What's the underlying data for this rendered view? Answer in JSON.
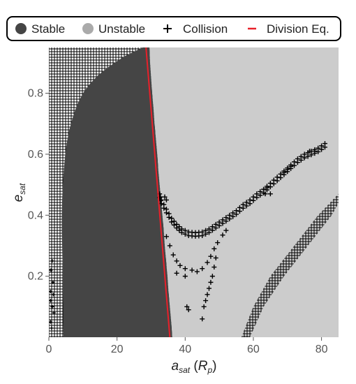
{
  "chart_data": {
    "type": "heatmap",
    "title": "",
    "xlabel": {
      "main": "a",
      "sub": "sat",
      "unit_open": "(",
      "unit_main": "R",
      "unit_sub": "p",
      "unit_close": ")"
    },
    "ylabel": {
      "main": "e",
      "sub": "sat"
    },
    "xlim": [
      0,
      85
    ],
    "ylim": [
      0,
      0.95
    ],
    "x_ticks": [
      0,
      20,
      40,
      60,
      80
    ],
    "y_ticks": [
      0.2,
      0.4,
      0.6,
      0.8
    ],
    "x_tick_labels": [
      "0",
      "20",
      "40",
      "60",
      "80"
    ],
    "y_tick_labels": [
      "0.2",
      "0.4",
      "0.6",
      "0.8"
    ],
    "grid": false,
    "legend": {
      "placement": "top",
      "items": [
        {
          "label": "Stable",
          "symbol": "filled-circle",
          "color": "#444444"
        },
        {
          "label": "Unstable",
          "symbol": "filled-circle",
          "color": "#aaaaaa"
        },
        {
          "label": "Collision",
          "symbol": "plus",
          "color": "#000000"
        },
        {
          "label": "Division Eq.",
          "symbol": "line",
          "color": "#e8202a"
        }
      ]
    },
    "colors": {
      "stable": "#454545",
      "unstable": "#cccccc",
      "collision": "#000000",
      "division": "#e8202a"
    },
    "regions": {
      "stable_boundary": [
        [
          0.95,
          29.5
        ],
        [
          0.9,
          29.7
        ],
        [
          0.85,
          30.0
        ],
        [
          0.8,
          30.3
        ],
        [
          0.75,
          30.7
        ],
        [
          0.7,
          31.0
        ],
        [
          0.65,
          31.4
        ],
        [
          0.6,
          31.8
        ],
        [
          0.55,
          32.1
        ],
        [
          0.5,
          32.5
        ],
        [
          0.45,
          32.9
        ],
        [
          0.4,
          33.3
        ],
        [
          0.35,
          33.7
        ],
        [
          0.3,
          34.0
        ],
        [
          0.25,
          34.4
        ],
        [
          0.2,
          34.8
        ],
        [
          0.15,
          35.1
        ],
        [
          0.1,
          35.5
        ],
        [
          0.05,
          35.9
        ],
        [
          0.0,
          36.2
        ]
      ],
      "left_collision_boundary": [
        [
          0.95,
          27.5
        ],
        [
          0.92,
          22.0
        ],
        [
          0.89,
          18.0
        ],
        [
          0.86,
          14.5
        ],
        [
          0.83,
          12.0
        ],
        [
          0.8,
          10.0
        ],
        [
          0.76,
          8.2
        ],
        [
          0.72,
          7.0
        ],
        [
          0.68,
          6.0
        ],
        [
          0.64,
          5.3
        ],
        [
          0.6,
          4.8
        ],
        [
          0.55,
          4.4
        ],
        [
          0.5,
          4.1
        ],
        [
          0.45,
          3.9
        ],
        [
          0.4,
          3.8
        ],
        [
          0.35,
          3.8
        ],
        [
          0.3,
          3.9
        ],
        [
          0.25,
          4.0
        ],
        [
          0.2,
          4.1
        ],
        [
          0.15,
          4.1
        ],
        [
          0.1,
          4.2
        ],
        [
          0.05,
          4.2
        ],
        [
          0.0,
          4.3
        ]
      ]
    },
    "division_line": [
      [
        28.5,
        0.95
      ],
      [
        35.5,
        0.0
      ]
    ],
    "collision_band_right": {
      "inner_edge": [
        [
          56.5,
          0.0
        ],
        [
          60.0,
          0.1
        ],
        [
          65.0,
          0.2
        ],
        [
          72.0,
          0.3
        ],
        [
          79.0,
          0.4
        ],
        [
          85.0,
          0.47
        ]
      ],
      "outer_edge": [
        [
          59.0,
          0.0
        ],
        [
          63.0,
          0.1
        ],
        [
          69.0,
          0.2
        ],
        [
          76.0,
          0.3
        ],
        [
          83.0,
          0.4
        ],
        [
          85.0,
          0.44
        ]
      ]
    },
    "collision_arc": [
      [
        32.5,
        0.47
      ],
      [
        33.0,
        0.45
      ],
      [
        34.5,
        0.42
      ],
      [
        36.0,
        0.39
      ],
      [
        37.5,
        0.37
      ],
      [
        39.0,
        0.355
      ],
      [
        41.0,
        0.345
      ],
      [
        43.0,
        0.343
      ],
      [
        45.0,
        0.345
      ],
      [
        47.0,
        0.355
      ],
      [
        49.0,
        0.37
      ],
      [
        51.0,
        0.385
      ],
      [
        53.0,
        0.4
      ],
      [
        55.0,
        0.415
      ],
      [
        57.0,
        0.435
      ],
      [
        59.0,
        0.45
      ],
      [
        61.0,
        0.47
      ],
      [
        63.0,
        0.485
      ],
      [
        65.0,
        0.505
      ],
      [
        67.0,
        0.525
      ],
      [
        69.0,
        0.545
      ],
      [
        71.0,
        0.565
      ],
      [
        73.0,
        0.585
      ],
      [
        75.0,
        0.6
      ],
      [
        77.0,
        0.61
      ],
      [
        79.0,
        0.62
      ],
      [
        81.0,
        0.635
      ]
    ],
    "collision_inner_arc": [
      [
        34.5,
        0.33
      ],
      [
        35.5,
        0.3
      ],
      [
        36.5,
        0.27
      ],
      [
        37.5,
        0.25
      ],
      [
        38.5,
        0.235
      ],
      [
        40.0,
        0.225
      ],
      [
        42.0,
        0.22
      ],
      [
        43.5,
        0.215
      ],
      [
        45.0,
        0.225
      ],
      [
        46.5,
        0.245
      ],
      [
        47.5,
        0.265
      ],
      [
        48.5,
        0.29
      ],
      [
        49.5,
        0.31
      ],
      [
        51.0,
        0.335
      ],
      [
        52.0,
        0.35
      ]
    ],
    "collision_scatter": [
      [
        34.0,
        0.46
      ],
      [
        34.5,
        0.45
      ],
      [
        37.5,
        0.21
      ],
      [
        40.0,
        0.2
      ],
      [
        40.5,
        0.1
      ],
      [
        41.0,
        0.09
      ],
      [
        45.0,
        0.06
      ],
      [
        45.5,
        0.1
      ],
      [
        46.0,
        0.12
      ],
      [
        46.5,
        0.14
      ],
      [
        47.0,
        0.16
      ],
      [
        47.5,
        0.18
      ],
      [
        48.0,
        0.2
      ],
      [
        48.5,
        0.23
      ],
      [
        49.0,
        0.26
      ],
      [
        63.5,
        0.47
      ],
      [
        64.0,
        0.49
      ],
      [
        65.0,
        0.47
      ],
      [
        69.0,
        0.54
      ],
      [
        70.0,
        0.55
      ],
      [
        71.0,
        0.56
      ],
      [
        76.5,
        0.61
      ],
      [
        78.0,
        0.61
      ]
    ],
    "left_band_specks": [
      [
        0.5,
        0.05
      ],
      [
        1.0,
        0.1
      ],
      [
        0.5,
        0.15
      ],
      [
        1.2,
        0.18
      ],
      [
        0.6,
        0.22
      ],
      [
        1.0,
        0.25
      ],
      [
        0.5,
        0.12
      ],
      [
        1.5,
        0.08
      ],
      [
        0.8,
        0.03
      ],
      [
        1.3,
        0.14
      ]
    ]
  }
}
